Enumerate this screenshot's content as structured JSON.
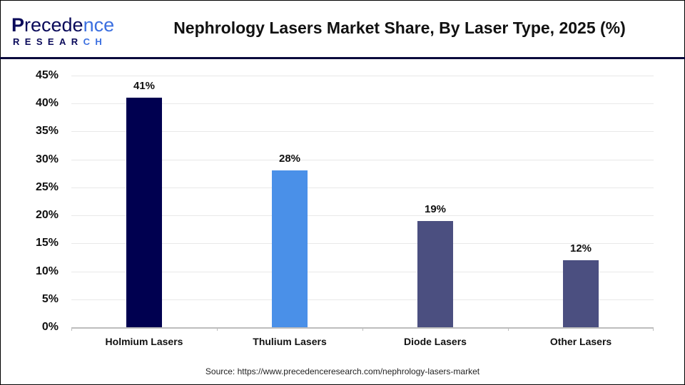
{
  "brand": {
    "logo_top": "Precedence",
    "logo_bottom": "RESEARCH",
    "primary_color": "#0a0a5a",
    "accent_color": "#3b6fe0"
  },
  "header": {
    "title": "Nephrology Lasers Market Share, By Laser Type, 2025 (%)"
  },
  "footer": {
    "source": "Source: https://www.precedenceresearch.com/nephrology-lasers-market"
  },
  "chart_data": {
    "type": "bar",
    "title": "Nephrology Lasers Market Share, By Laser Type, 2025 (%)",
    "xlabel": "",
    "ylabel": "",
    "categories": [
      "Holmium Lasers",
      "Thulium Lasers",
      "Diode Lasers",
      "Other Lasers"
    ],
    "values": [
      41,
      28,
      19,
      12
    ],
    "value_labels": [
      "41%",
      "28%",
      "19%",
      "12%"
    ],
    "bar_colors": [
      "#000050",
      "#4a90e8",
      "#4b4f80",
      "#4b4f80"
    ],
    "ylim": [
      0,
      45
    ],
    "yticks": [
      0,
      5,
      10,
      15,
      20,
      25,
      30,
      35,
      40,
      45
    ],
    "ytick_labels": [
      "0%",
      "5%",
      "10%",
      "15%",
      "20%",
      "25%",
      "30%",
      "35%",
      "40%",
      "45%"
    ],
    "grid": true,
    "legend": false
  }
}
